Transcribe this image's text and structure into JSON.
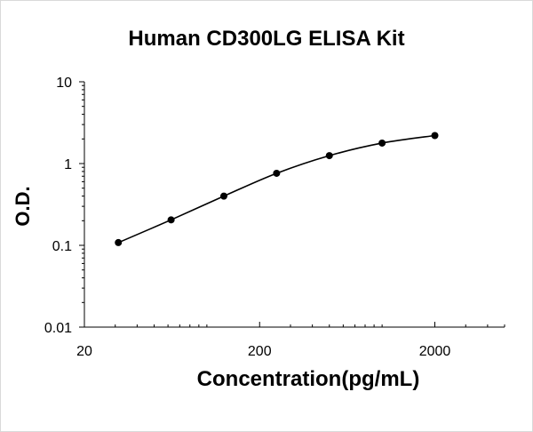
{
  "chart_data": {
    "type": "line",
    "title": "Human CD300LG ELISA Kit",
    "xlabel": "Concentration(pg/mL)",
    "ylabel": "O.D.",
    "xscale": "log",
    "yscale": "log",
    "xlim": [
      20,
      5000
    ],
    "ylim": [
      0.01,
      10
    ],
    "xticks": [
      {
        "value": 20,
        "label": "20"
      },
      {
        "value": 200,
        "label": "200"
      },
      {
        "value": 2000,
        "label": "2000"
      }
    ],
    "yticks": [
      {
        "value": 10,
        "label": "10"
      },
      {
        "value": 1,
        "label": "1"
      },
      {
        "value": 0.1,
        "label": "0.1"
      },
      {
        "value": 0.01,
        "label": "0.01"
      }
    ],
    "grid": false,
    "legend": "none",
    "series": [
      {
        "x": [
          31.25,
          62.5,
          125,
          250,
          500,
          1000,
          2000
        ],
        "y": [
          0.108,
          0.205,
          0.4,
          0.76,
          1.25,
          1.78,
          2.2
        ],
        "color": "#000000",
        "marker": "circle",
        "smooth": true
      }
    ]
  }
}
